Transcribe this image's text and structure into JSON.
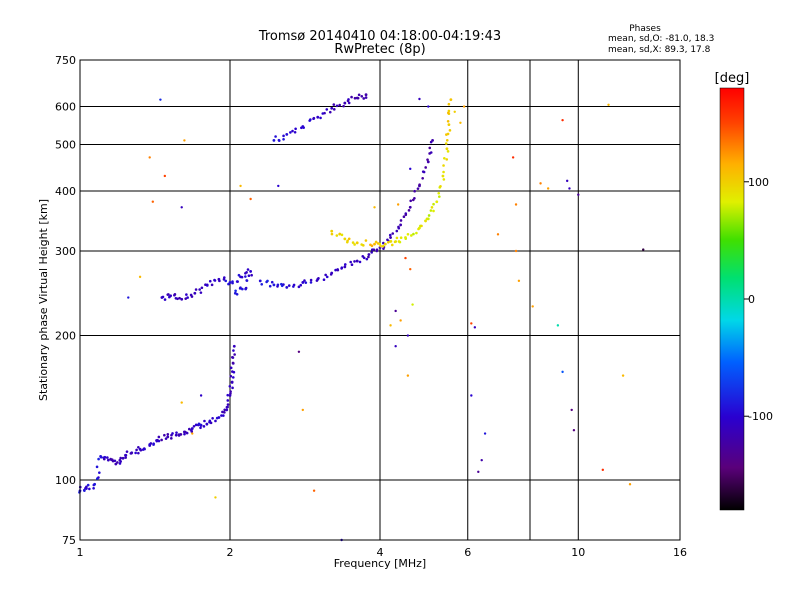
{
  "header": {
    "title": "Tromsø 20140410 04:18:00-04:19:43",
    "subtitle": "RwPretec (8p)"
  },
  "stats": {
    "heading": "Phases",
    "line_o": "mean, sd,O: -81.0, 18.3",
    "line_x": "mean, sd,X:  89.3, 17.8"
  },
  "colorbar": {
    "label": "[deg]",
    "ticks": [
      {
        "value": 100,
        "label": "100"
      },
      {
        "value": 0,
        "label": "0"
      },
      {
        "value": -100,
        "label": "-100"
      }
    ],
    "range": [
      -180,
      180
    ]
  },
  "chart_data": {
    "type": "scatter",
    "title": "Tromsø 20140410 04:18:00-04:19:43",
    "subtitle": "RwPretec (8p)",
    "xlabel": "Frequency [MHz]",
    "ylabel": "Stationary phase Virtual Height [km]",
    "xscale": "log",
    "yscale": "log",
    "xlim": [
      1,
      16
    ],
    "ylim": [
      75,
      750
    ],
    "xticks": [
      {
        "value": 1,
        "label": "1"
      },
      {
        "value": 2,
        "label": "2"
      },
      {
        "value": 4,
        "label": "4"
      },
      {
        "value": 6,
        "label": "6"
      },
      {
        "value": 10,
        "label": "10"
      },
      {
        "value": 16,
        "label": "16"
      }
    ],
    "xgrid": [
      2,
      4,
      6,
      8,
      10
    ],
    "yticks": [
      {
        "value": 75,
        "label": "75"
      },
      {
        "value": 100,
        "label": "100"
      },
      {
        "value": 200,
        "label": "200"
      },
      {
        "value": 300,
        "label": "300"
      },
      {
        "value": 400,
        "label": "400"
      },
      {
        "value": 500,
        "label": "500"
      },
      {
        "value": 600,
        "label": "600"
      },
      {
        "value": 750,
        "label": "750"
      }
    ],
    "ygrid": [
      100,
      200,
      300,
      400,
      500,
      600
    ],
    "grid": true,
    "color_scale": "phase [deg], rainbow from -180 (black/purple) to 180 (red)",
    "series": [
      {
        "points": [
          [
            1.0,
            95,
            -95
          ],
          [
            1.03,
            96,
            -100
          ],
          [
            1.07,
            98,
            -90
          ],
          [
            1.1,
            112,
            -95
          ],
          [
            1.14,
            110,
            -110
          ],
          [
            1.18,
            108,
            -115
          ],
          [
            1.22,
            111,
            -112
          ],
          [
            1.27,
            114,
            -108
          ],
          [
            1.32,
            116,
            -105
          ],
          [
            1.38,
            118,
            -102
          ],
          [
            1.43,
            121,
            -108
          ],
          [
            1.5,
            123,
            -115
          ],
          [
            1.56,
            124,
            -110
          ],
          [
            1.62,
            126,
            -112
          ],
          [
            1.68,
            128,
            -105
          ],
          [
            1.75,
            130,
            -100
          ],
          [
            1.82,
            132,
            -105
          ],
          [
            1.9,
            135,
            -100
          ],
          [
            1.97,
            140,
            -110
          ],
          [
            2.0,
            150,
            -110
          ],
          [
            2.02,
            160,
            -110
          ],
          [
            2.03,
            175,
            -112
          ],
          [
            2.04,
            190,
            -110
          ]
        ]
      },
      {
        "points": [
          [
            1.46,
            240,
            -110
          ],
          [
            1.52,
            242,
            -108
          ],
          [
            1.6,
            238,
            -112
          ],
          [
            1.7,
            245,
            -110
          ],
          [
            1.8,
            255,
            -105
          ],
          [
            1.9,
            262,
            -108
          ],
          [
            2.0,
            258,
            -95
          ],
          [
            2.1,
            265,
            -100
          ],
          [
            2.2,
            272,
            -102
          ],
          [
            2.15,
            250,
            -95
          ],
          [
            2.05,
            245,
            -90
          ]
        ]
      },
      {
        "points": [
          [
            2.3,
            260,
            -95
          ],
          [
            2.45,
            255,
            -90
          ],
          [
            2.6,
            252,
            -95
          ],
          [
            2.8,
            258,
            -100
          ],
          [
            3.0,
            262,
            -105
          ],
          [
            3.2,
            270,
            -108
          ],
          [
            3.4,
            278,
            -110
          ],
          [
            3.6,
            286,
            -112
          ],
          [
            3.8,
            295,
            -112
          ],
          [
            4.0,
            305,
            -115
          ],
          [
            4.2,
            320,
            -118
          ],
          [
            4.4,
            340,
            -118
          ],
          [
            4.6,
            370,
            -120
          ],
          [
            4.8,
            410,
            -120
          ],
          [
            5.0,
            460,
            -120
          ],
          [
            5.1,
            510,
            -120
          ]
        ]
      },
      {
        "points": [
          [
            3.2,
            330,
            100
          ],
          [
            3.4,
            318,
            95
          ],
          [
            3.6,
            312,
            100
          ],
          [
            3.9,
            310,
            110
          ],
          [
            4.1,
            310,
            95
          ],
          [
            4.3,
            314,
            90
          ],
          [
            4.5,
            320,
            85
          ],
          [
            4.8,
            335,
            85
          ],
          [
            5.0,
            350,
            80
          ],
          [
            5.2,
            380,
            85
          ],
          [
            5.35,
            430,
            90
          ],
          [
            5.45,
            490,
            95
          ],
          [
            5.5,
            550,
            100
          ],
          [
            5.55,
            620,
            105
          ]
        ]
      },
      {
        "points": [
          [
            2.45,
            510,
            -90
          ],
          [
            2.6,
            525,
            -95
          ],
          [
            2.8,
            545,
            -100
          ],
          [
            3.0,
            570,
            -105
          ],
          [
            3.2,
            595,
            -110
          ],
          [
            3.4,
            610,
            -115
          ],
          [
            3.6,
            625,
            -118
          ],
          [
            3.75,
            635,
            -120
          ]
        ]
      }
    ],
    "scatter_noise": [
      [
        1.48,
        430,
        150
      ],
      [
        1.38,
        470,
        130
      ],
      [
        1.62,
        510,
        120
      ],
      [
        1.45,
        620,
        -80
      ],
      [
        1.4,
        380,
        140
      ],
      [
        1.6,
        370,
        -110
      ],
      [
        2.1,
        410,
        110
      ],
      [
        2.2,
        385,
        140
      ],
      [
        2.5,
        410,
        -100
      ],
      [
        1.25,
        240,
        -90
      ],
      [
        1.32,
        265,
        110
      ],
      [
        2.75,
        185,
        -140
      ],
      [
        2.8,
        140,
        120
      ],
      [
        2.95,
        95,
        140
      ],
      [
        1.87,
        92,
        100
      ],
      [
        1.75,
        150,
        -105
      ],
      [
        1.68,
        125,
        120
      ],
      [
        1.6,
        145,
        110
      ],
      [
        4.2,
        210,
        110
      ],
      [
        4.4,
        215,
        120
      ],
      [
        4.55,
        200,
        -110
      ],
      [
        4.3,
        225,
        -130
      ],
      [
        4.3,
        190,
        -110
      ],
      [
        4.55,
        165,
        120
      ],
      [
        4.5,
        290,
        150
      ],
      [
        4.6,
        275,
        140
      ],
      [
        4.65,
        232,
        80
      ],
      [
        4.8,
        622,
        -110
      ],
      [
        5.0,
        600,
        -100
      ],
      [
        5.65,
        585,
        100
      ],
      [
        5.8,
        555,
        110
      ],
      [
        5.9,
        600,
        120
      ],
      [
        6.1,
        212,
        150
      ],
      [
        6.2,
        208,
        -110
      ],
      [
        6.3,
        104,
        -130
      ],
      [
        6.4,
        110,
        -120
      ],
      [
        6.5,
        125,
        -90
      ],
      [
        6.9,
        325,
        130
      ],
      [
        7.4,
        470,
        160
      ],
      [
        7.5,
        375,
        130
      ],
      [
        7.5,
        300,
        130
      ],
      [
        7.6,
        260,
        120
      ],
      [
        8.1,
        230,
        120
      ],
      [
        8.4,
        415,
        130
      ],
      [
        8.7,
        405,
        120
      ],
      [
        9.1,
        210,
        0
      ],
      [
        9.3,
        168,
        -60
      ],
      [
        9.3,
        562,
        160
      ],
      [
        9.5,
        420,
        -110
      ],
      [
        9.6,
        405,
        -110
      ],
      [
        9.7,
        140,
        -140
      ],
      [
        9.8,
        127,
        -140
      ],
      [
        10.0,
        393,
        -130
      ],
      [
        11.2,
        105,
        160
      ],
      [
        11.5,
        605,
        110
      ],
      [
        12.3,
        165,
        110
      ],
      [
        12.7,
        98,
        120
      ],
      [
        13.5,
        302,
        -160
      ],
      [
        6.1,
        150,
        -100
      ],
      [
        3.35,
        75,
        -100
      ],
      [
        4.6,
        445,
        -100
      ],
      [
        4.35,
        375,
        120
      ],
      [
        3.9,
        370,
        110
      ]
    ]
  }
}
